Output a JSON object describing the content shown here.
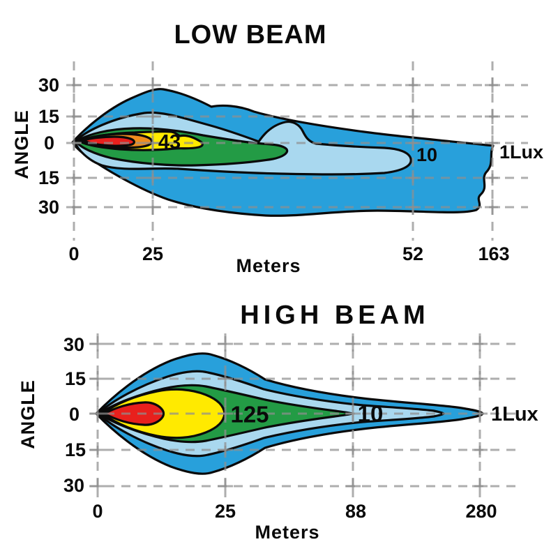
{
  "figure": {
    "background": "#ffffff",
    "description": "Headlight photometric beam pattern iso-lux contour diagrams"
  },
  "low_beam": {
    "title": "LOW BEAM",
    "ylabel": "ANGLE",
    "xlabel": "Meters",
    "y_ticks": [
      "30",
      "15",
      "0",
      "15",
      "30"
    ],
    "x_ticks": [
      "0",
      "25",
      "52",
      "163"
    ],
    "contour_labels": {
      "yellow": "43",
      "lightblue": "10",
      "outer": "1Lux"
    }
  },
  "high_beam": {
    "title": "HIGH BEAM",
    "ylabel": "ANGLE",
    "xlabel": "Meters",
    "y_ticks": [
      "30",
      "15",
      "0",
      "15",
      "30"
    ],
    "x_ticks": [
      "0",
      "25",
      "88",
      "280"
    ],
    "contour_labels": {
      "green": "125",
      "lightblue": "10",
      "outer": "1Lux"
    }
  },
  "colors": {
    "blue": "#28A0DB",
    "light_blue": "#A9D8EF",
    "green": "#239B45",
    "yellow": "#FFEA00",
    "orange": "#EF8D1E",
    "red": "#E8201D",
    "gridline": "#8F8F8F",
    "text": "#0A0A0A"
  },
  "chart_data": [
    {
      "type": "contour",
      "title": "LOW BEAM",
      "xlabel": "Meters",
      "ylabel": "ANGLE (degrees)",
      "unit": "lux",
      "x_ticks_m": [
        0,
        25,
        52,
        163
      ],
      "y_ticks_deg": [
        30,
        15,
        0,
        -15,
        -30
      ],
      "grid": true,
      "contour_text_labels": [
        "43",
        "10",
        "1Lux"
      ],
      "levels_outer_to_inner": [
        {
          "value_lux": 1,
          "label": "1Lux",
          "color_hex": "#28A0DB",
          "approx_reach_m": 163
        },
        {
          "value_lux": 10,
          "label": "10",
          "color_hex": "#A9D8EF",
          "approx_reach_m": 52
        },
        {
          "value_lux": null,
          "label": "",
          "color_hex": "#239B45",
          "approx_reach_m": 38
        },
        {
          "value_lux": 43,
          "label": "43",
          "color_hex": "#FFEA00",
          "approx_reach_m": 28
        },
        {
          "value_lux": null,
          "label": "",
          "color_hex": "#EF8D1E",
          "approx_reach_m": 24
        },
        {
          "value_lux": null,
          "label": "",
          "color_hex": "#E8201D",
          "approx_reach_m": 19
        }
      ],
      "shape_notes": "asymmetric low-beam pattern, wide shallow spread below horizon extending right, cut off at right edge near 163 m"
    },
    {
      "type": "contour",
      "title": "HIGH BEAM",
      "xlabel": "Meters",
      "ylabel": "ANGLE (degrees)",
      "unit": "lux",
      "x_ticks_m": [
        0,
        25,
        88,
        280
      ],
      "y_ticks_deg": [
        30,
        15,
        0,
        -15,
        -30
      ],
      "grid": true,
      "contour_text_labels": [
        "125",
        "10",
        "1Lux"
      ],
      "levels_outer_to_inner": [
        {
          "value_lux": 1,
          "label": "1Lux",
          "color_hex": "#28A0DB",
          "approx_reach_m": 280
        },
        {
          "value_lux": 10,
          "label": "10",
          "color_hex": "#A9D8EF",
          "approx_reach_m": 200
        },
        {
          "value_lux": 125,
          "label": "125",
          "color_hex": "#239B45",
          "approx_reach_m": 88
        },
        {
          "value_lux": null,
          "label": "",
          "color_hex": "#FFEA00",
          "approx_reach_m": 25
        },
        {
          "value_lux": null,
          "label": "",
          "color_hex": "#E8201D",
          "approx_reach_m": 13
        }
      ],
      "shape_notes": "symmetric pencil-shaped high-beam pattern centered on 0 degrees, long narrow reach to 280 m"
    }
  ]
}
